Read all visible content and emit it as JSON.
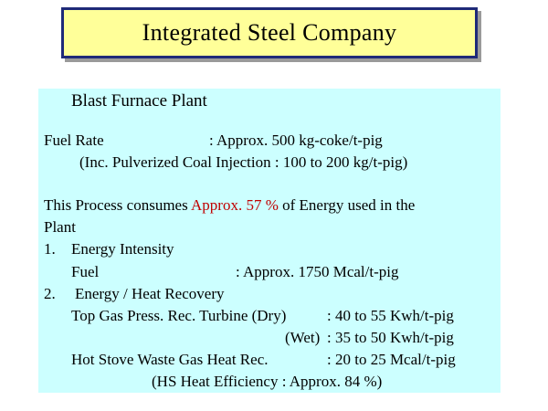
{
  "title": "Integrated  Steel Company",
  "section": "Blast Furnace Plant",
  "fuel_rate": {
    "label": "Fuel Rate",
    "value": ": Approx. 500 kg-coke/t-pig",
    "note": "(Inc. Pulverized Coal Injection : 100 to 200 kg/t-pig)"
  },
  "consumption": {
    "prefix": "This Process consumes ",
    "highlight": "Approx. 57 %",
    "suffix": " of Energy used in the",
    "line2": "Plant",
    "highlight_color": "#c00000"
  },
  "items": [
    {
      "number": "1.",
      "label": "Energy Intensity",
      "rows": [
        {
          "label": "Fuel",
          "value": ": Approx. 1750 Mcal/t-pig"
        }
      ]
    },
    {
      "number": "2.",
      "label": "Energy / Heat Recovery",
      "rows": [
        {
          "label": "Top Gas Press. Rec. Turbine (Dry)",
          "value": ": 40 to 55 Kwh/t-pig"
        },
        {
          "label": "(Wet)",
          "value": ": 35 to 50 Kwh/t-pig"
        },
        {
          "label": "Hot Stove Waste Gas Heat Rec.",
          "value": ": 20 to 25 Mcal/t-pig"
        },
        {
          "label": "(HS Heat Efficiency : Approx. 84 %)",
          "value": ""
        }
      ]
    }
  ],
  "colors": {
    "title_bg": "#ffff99",
    "title_border": "#1f2a78",
    "panel_bg": "#ccffff"
  }
}
